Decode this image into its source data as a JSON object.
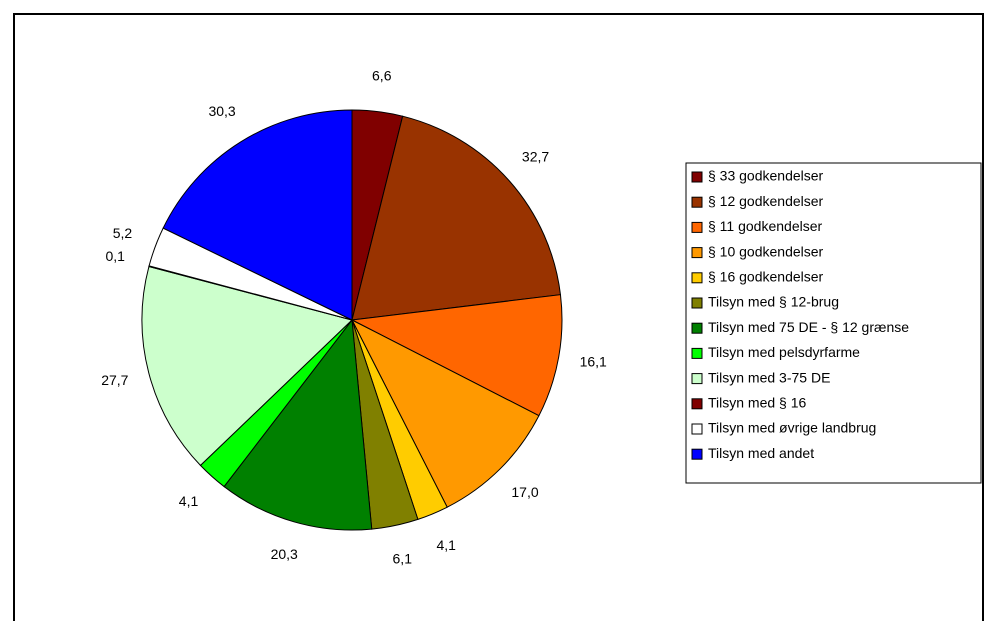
{
  "chart_data": {
    "type": "pie",
    "categories": [
      "§ 33 godkendelser",
      "§ 12 godkendelser",
      "§ 11 godkendelser",
      "§ 10 godkendelser",
      "§ 16 godkendelser",
      "Tilsyn med § 12-brug",
      "Tilsyn med 75 DE - § 12 grænse",
      "Tilsyn med pelsdyrfarme",
      "Tilsyn med 3-75 DE",
      "Tilsyn med § 16",
      "Tilsyn med øvrige landbrug",
      "Tilsyn med andet"
    ],
    "values": [
      6.6,
      32.7,
      16.1,
      17.0,
      4.1,
      6.1,
      20.3,
      4.1,
      27.7,
      0.1,
      5.2,
      30.3
    ],
    "value_labels": [
      "6,6",
      "32,7",
      "16,1",
      "17,0",
      "4,1",
      "6,1",
      "20,3",
      "4,1",
      "27,7",
      "0,1",
      "5,2",
      "30,3"
    ],
    "colors": [
      "#800000",
      "#993300",
      "#ff6600",
      "#ff9900",
      "#ffcc00",
      "#808000",
      "#008000",
      "#00ff00",
      "#ccffcc",
      "#800000",
      "#ffffff",
      "#0000ff"
    ],
    "legend": "right"
  }
}
